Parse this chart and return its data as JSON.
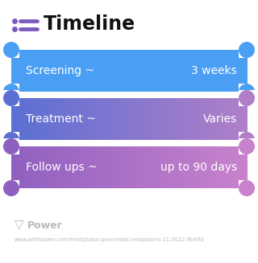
{
  "title": "Timeline",
  "title_icon_color": "#7c5cbf",
  "background_color": "#ffffff",
  "rows": [
    {
      "label": "Screening ~",
      "value": "3 weeks",
      "color_left": "#4a9ff5",
      "color_right": "#4a9ff5"
    },
    {
      "label": "Treatment ~",
      "value": "Varies",
      "color_left": "#5b6fd4",
      "color_right": "#b07fc8"
    },
    {
      "label": "Follow ups ~",
      "value": "up to 90 days",
      "color_left": "#9060c0",
      "color_right": "#c882cc"
    }
  ],
  "footer_logo_text": "Power",
  "footer_url": "www.withpower.com/trial/phase-pancreatic-neoplasms-11-2022-9b49b",
  "footer_color": "#bbbbbb"
}
